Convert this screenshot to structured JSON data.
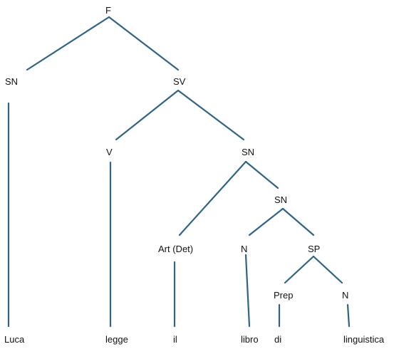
{
  "tree": {
    "edge_color": "#2f6485",
    "nodes": {
      "F": "F",
      "SN_subj": "SN",
      "SV": "SV",
      "V": "V",
      "SN_obj": "SN",
      "SN_inner": "SN",
      "Art": "Art (Det)",
      "N_libro": "N",
      "SP": "SP",
      "Prep": "Prep",
      "N_ling": "N"
    },
    "words": {
      "Luca": "Luca",
      "legge": "legge",
      "il": "il",
      "libro": "libro",
      "di": "di",
      "linguistica": "linguistica"
    }
  }
}
